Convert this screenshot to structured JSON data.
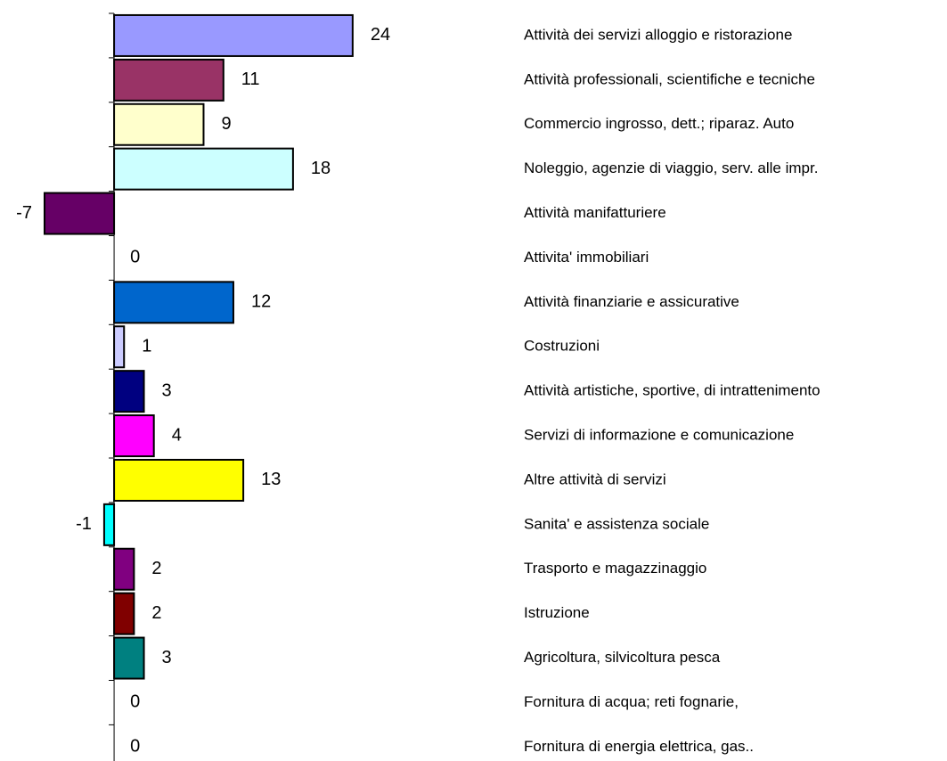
{
  "chart_data": {
    "type": "bar",
    "orientation": "horizontal",
    "categories": [
      "Attività dei servizi alloggio e ristorazione",
      "Attività professionali, scientifiche e tecniche",
      "Commercio ingrosso, dett.; riparaz. Auto",
      "Noleggio, agenzie di viaggio, serv. alle impr.",
      "Attività manifatturiere",
      "Attivita' immobiliari",
      "Attività finanziarie e assicurative",
      "Costruzioni",
      "Attività artistiche, sportive, di intrattenimento",
      "Servizi di informazione e comunicazione",
      "Altre attività di servizi",
      "Sanita' e assistenza sociale",
      "Trasporto e magazzinaggio",
      "Istruzione",
      "Agricoltura, silvicoltura pesca",
      "Fornitura di acqua; reti fognarie,",
      "Fornitura di energia elettrica, gas.."
    ],
    "values": [
      24,
      11,
      9,
      18,
      -7,
      0,
      12,
      1,
      3,
      4,
      13,
      -1,
      2,
      2,
      3,
      0,
      0
    ],
    "colors": [
      "#9999ff",
      "#993366",
      "#ffffcc",
      "#ccffff",
      "#660066",
      "#ff8080",
      "#0066cc",
      "#ccccff",
      "#000080",
      "#ff00ff",
      "#ffff00",
      "#00ffff",
      "#800080",
      "#800000",
      "#008080",
      "#0000ff",
      "#ff0000"
    ],
    "xlim": [
      -10,
      25
    ]
  }
}
